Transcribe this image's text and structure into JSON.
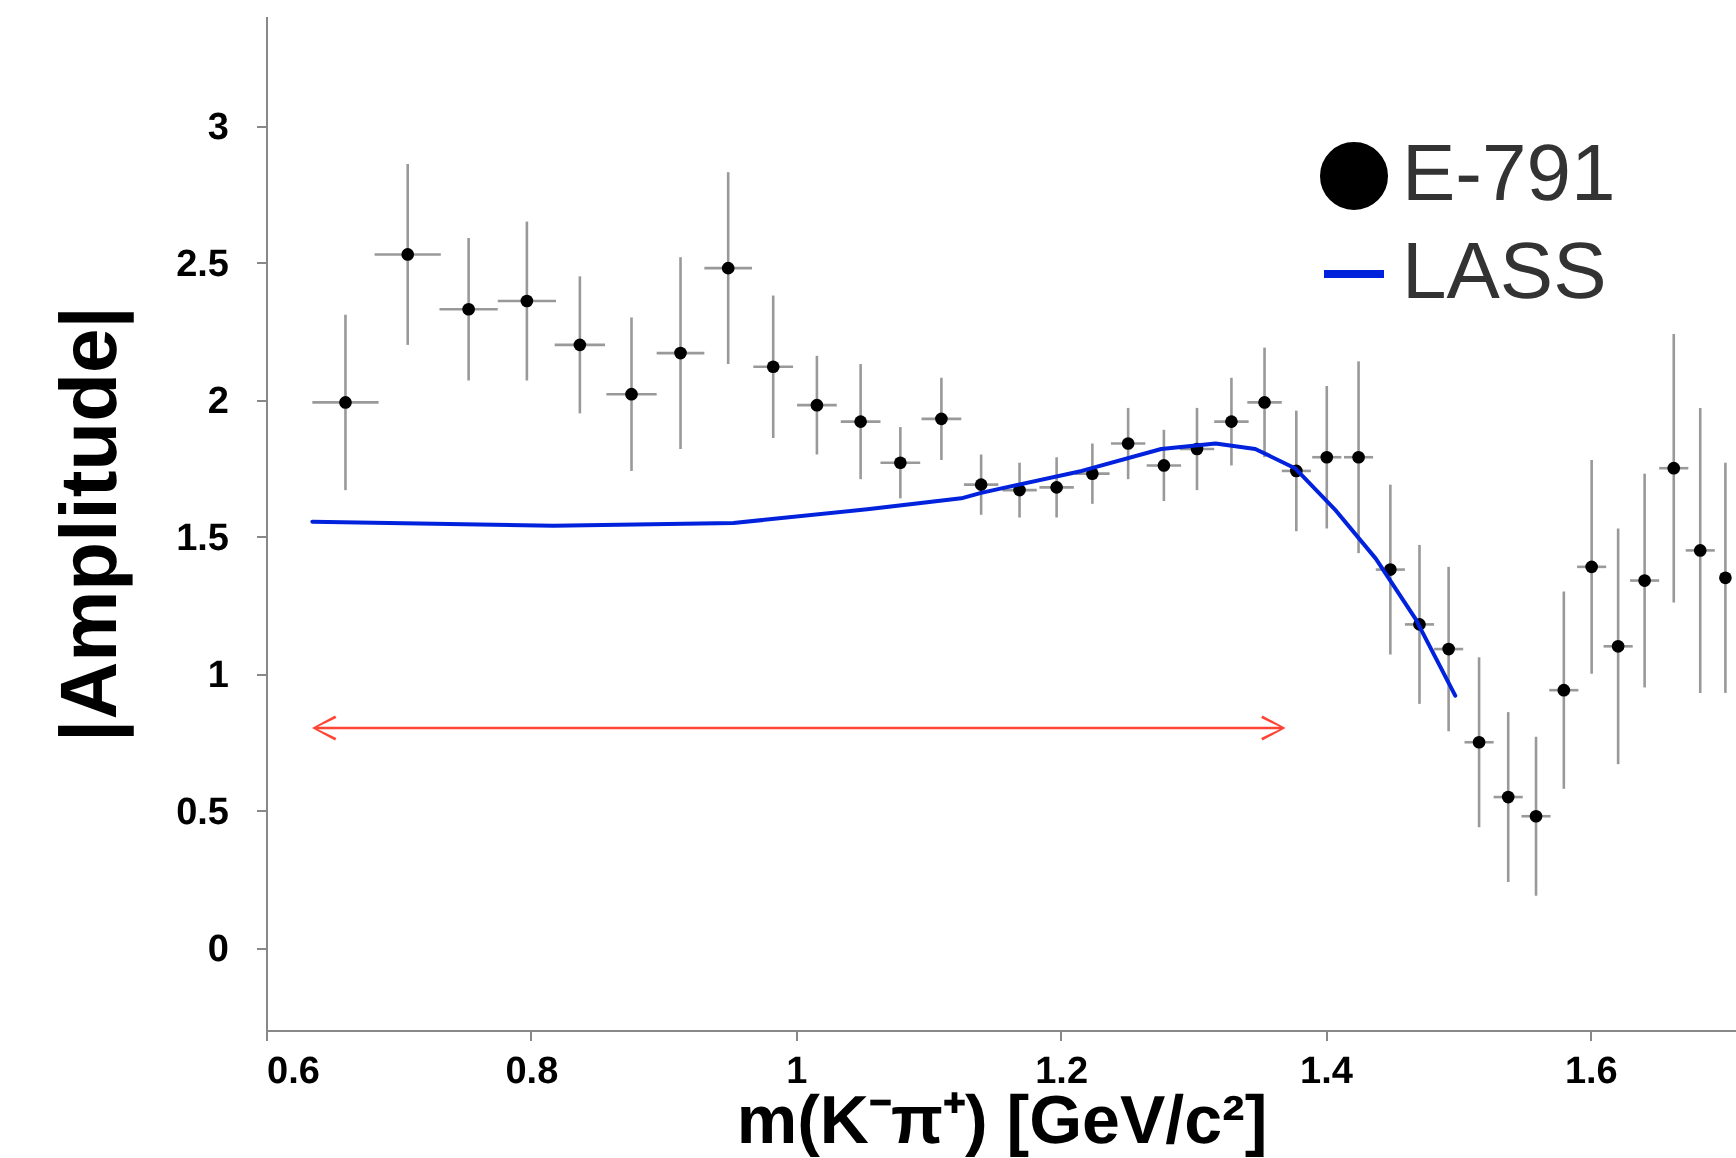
{
  "chart_data": {
    "type": "scatter",
    "xlabel": "m(K⁻π⁺) [GeV/c²]",
    "ylabel": "|Amplitude|",
    "xlim": [
      0.6,
      1.71
    ],
    "ylim": [
      -0.3,
      3.4
    ],
    "xticks": [
      0.6,
      0.8,
      1,
      1.2,
      1.4,
      1.6
    ],
    "yticks": [
      0,
      0.5,
      1,
      1.5,
      2,
      2.5,
      3
    ],
    "legend": "top right",
    "grid": false,
    "series": [
      {
        "name": "E-791",
        "type": "scatter",
        "color": "#000000",
        "marker": "circle",
        "x": [
          0.66,
          0.707,
          0.753,
          0.797,
          0.837,
          0.876,
          0.913,
          0.949,
          0.983,
          1.016,
          1.049,
          1.079,
          1.11,
          1.14,
          1.169,
          1.197,
          1.224,
          1.251,
          1.278,
          1.303,
          1.329,
          1.354,
          1.378,
          1.401,
          1.425,
          1.449,
          1.471,
          1.493,
          1.516,
          1.538,
          1.559,
          1.58,
          1.601,
          1.621,
          1.641,
          1.663,
          1.683,
          1.702
        ],
        "values": [
          1.99,
          2.53,
          2.33,
          2.36,
          2.2,
          2.02,
          2.17,
          2.48,
          2.12,
          1.98,
          1.92,
          1.77,
          1.93,
          1.69,
          1.67,
          1.68,
          1.73,
          1.84,
          1.76,
          1.82,
          1.92,
          1.99,
          1.74,
          1.79,
          1.79,
          1.38,
          1.18,
          1.09,
          0.75,
          0.55,
          0.48,
          0.94,
          1.39,
          1.1,
          1.34,
          1.75,
          1.45,
          1.35
        ],
        "errors": [
          0.32,
          0.33,
          0.26,
          0.29,
          0.25,
          0.28,
          0.35,
          0.35,
          0.26,
          0.18,
          0.21,
          0.13,
          0.15,
          0.11,
          0.1,
          0.11,
          0.11,
          0.13,
          0.13,
          0.15,
          0.16,
          0.2,
          0.22,
          0.26,
          0.35,
          0.31,
          0.29,
          0.3,
          0.31,
          0.31,
          0.29,
          0.36,
          0.39,
          0.43,
          0.39,
          0.49,
          0.52,
          0.42
        ],
        "xerrors": [
          0.025,
          0.025,
          0.022,
          0.022,
          0.019,
          0.019,
          0.018,
          0.018,
          0.015,
          0.015,
          0.015,
          0.015,
          0.015,
          0.013,
          0.013,
          0.013,
          0.013,
          0.013,
          0.013,
          0.013,
          0.013,
          0.013,
          0.011,
          0.011,
          0.011,
          0.011,
          0.011,
          0.011,
          0.011,
          0.011,
          0.011,
          0.011,
          0.011,
          0.011,
          0.011,
          0.011,
          0.011,
          null
        ]
      },
      {
        "name": "LASS",
        "type": "line",
        "color": "#0022dd",
        "x": [
          0.635,
          0.817,
          0.953,
          1.054,
          1.125,
          1.14,
          1.216,
          1.276,
          1.317,
          1.347,
          1.377,
          1.407,
          1.438,
          1.468,
          1.498
        ],
        "values": [
          1.555,
          1.54,
          1.55,
          1.6,
          1.64,
          1.66,
          1.74,
          1.82,
          1.84,
          1.82,
          1.75,
          1.6,
          1.42,
          1.2,
          0.92
        ]
      }
    ]
  }
}
